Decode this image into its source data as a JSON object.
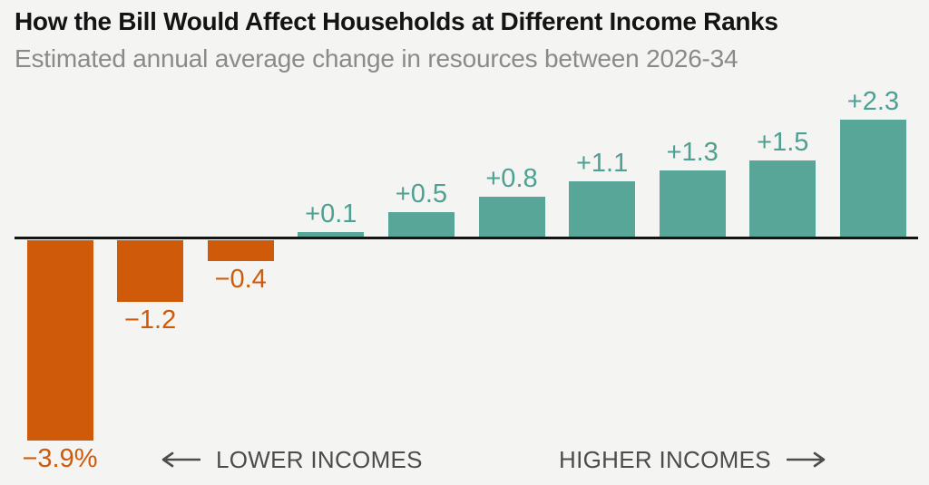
{
  "header": {
    "title": "How the Bill Would Affect Households at Different Income Ranks",
    "subtitle": "Estimated annual average change in resources between 2026-34"
  },
  "chart_data": {
    "type": "bar",
    "title": "How the Bill Would Affect Households at Different Income Ranks",
    "subtitle": "Estimated annual average change in resources between 2026-34",
    "unit": "percent change in resources",
    "values": [
      -3.9,
      -1.2,
      -0.4,
      0.1,
      0.5,
      0.8,
      1.1,
      1.3,
      1.5,
      2.3
    ],
    "labels": [
      "−3.9%",
      "−1.2",
      "−0.4",
      "+0.1",
      "+0.5",
      "+0.8",
      "+1.1",
      "+1.3",
      "+1.5",
      "+2.3"
    ],
    "baseline_value": 0,
    "ylim": [
      -4.1,
      2.6
    ],
    "grid": false,
    "legend": false,
    "negative_color": "#cf5a0a",
    "positive_color": "#58a697",
    "negative_label_color": "#cf5a0a",
    "positive_label_color": "#4da092",
    "axis_annotations": [
      "LOWER INCOMES",
      "HIGHER INCOMES"
    ]
  },
  "footer": {
    "lower_label": "LOWER INCOMES",
    "higher_label": "HIGHER INCOMES"
  },
  "colors": {
    "background": "#f4f4f2",
    "title_text": "#141414",
    "subtitle_text": "#8a8a8a",
    "baseline": "#141414",
    "footer_text": "#4c4c4c"
  }
}
